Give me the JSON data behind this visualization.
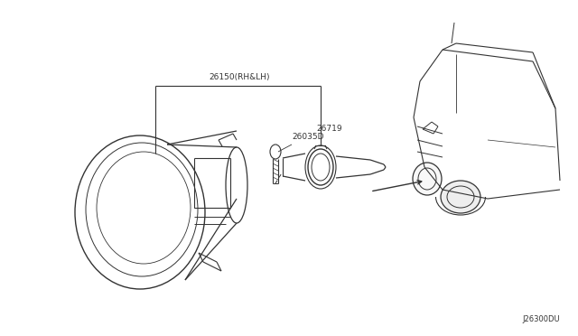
{
  "bg_color": "#ffffff",
  "line_color": "#333333",
  "text_color": "#333333",
  "diagram_code": "J26300DU",
  "label_26150": "26150(RH&LH)",
  "label_26035D": "26035D",
  "label_26719": "26719",
  "font_size": 6.5,
  "font_size_code": 6.0
}
